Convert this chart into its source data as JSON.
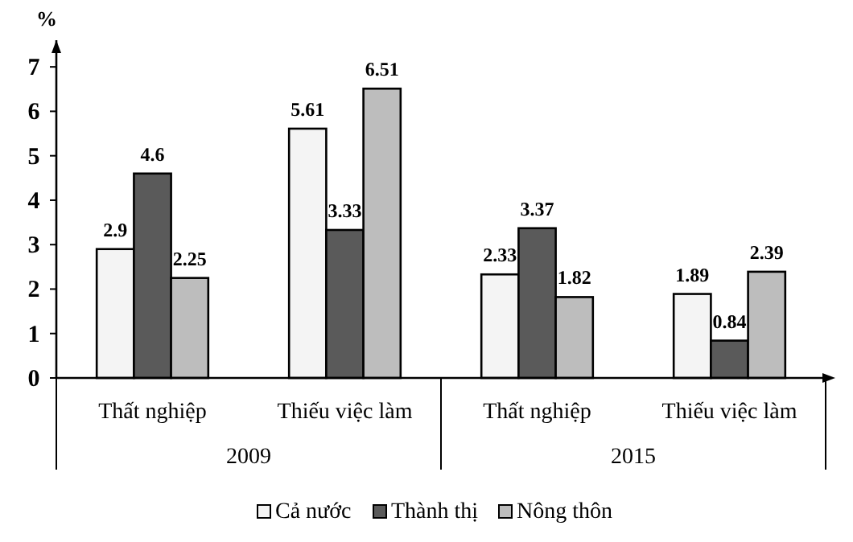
{
  "chart_data": {
    "type": "bar",
    "ylabel": "%",
    "categories": [
      "Thất nghiệp",
      "Thiếu việc làm",
      "Thất nghiệp",
      "Thiếu việc làm"
    ],
    "annotations": [
      "2009",
      "2015"
    ],
    "series": [
      {
        "name": "Cả nước",
        "color": "#f4f4f4",
        "values": [
          2.9,
          5.61,
          2.33,
          1.89
        ]
      },
      {
        "name": "Thành thị",
        "color": "#5a5a5a",
        "values": [
          4.6,
          3.33,
          3.37,
          0.84
        ]
      },
      {
        "name": "Nông thôn",
        "color": "#bdbdbd",
        "values": [
          2.25,
          6.51,
          1.82,
          2.39
        ]
      }
    ],
    "ylim": [
      0,
      7.6
    ],
    "yticks": [
      0,
      1,
      2,
      3,
      4,
      5,
      6,
      7
    ],
    "grid": false,
    "legend": "bottom",
    "data_labels": true
  }
}
